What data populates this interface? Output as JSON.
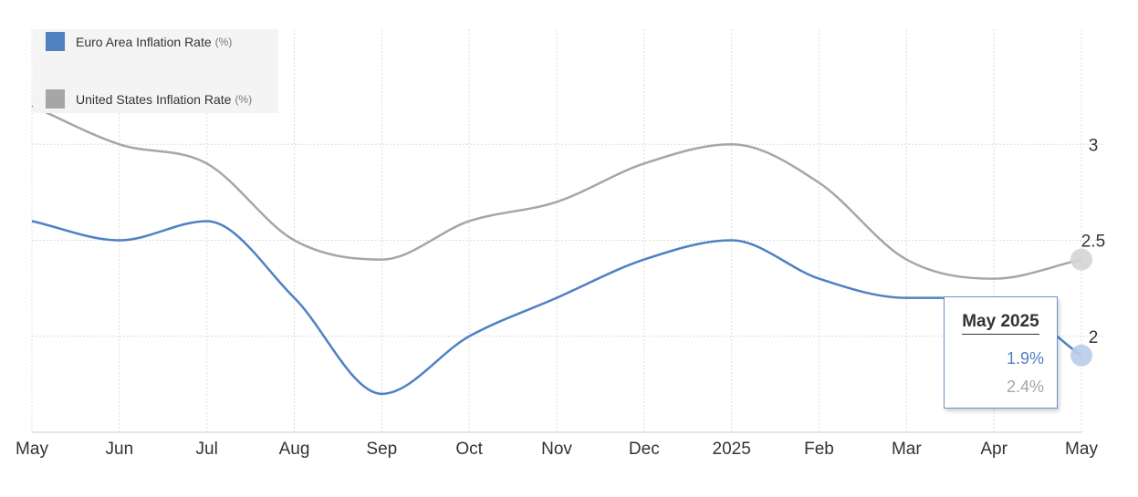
{
  "colors": {
    "euro": "#4f81c3",
    "us": "#a6a6a6",
    "grid": "#dcdcdc",
    "marker_euro": "#b9cde9",
    "marker_us": "#d4d4d4"
  },
  "legend": {
    "items": [
      {
        "name": "Euro Area Inflation Rate",
        "unit": "(%)"
      },
      {
        "name": "United States Inflation Rate",
        "unit": "(%)"
      }
    ]
  },
  "tooltip": {
    "title": "May 2025",
    "euro_value": "1.9%",
    "us_value": "2.4%"
  },
  "chart_data": {
    "type": "line",
    "categories": [
      "May",
      "Jun",
      "Jul",
      "Aug",
      "Sep",
      "Oct",
      "Nov",
      "Dec",
      "2025",
      "Feb",
      "Mar",
      "Apr",
      "May"
    ],
    "series": [
      {
        "name": "Euro Area Inflation Rate",
        "unit": "(%)",
        "values": [
          2.6,
          2.5,
          2.6,
          2.2,
          1.7,
          2.0,
          2.2,
          2.4,
          2.5,
          2.3,
          2.2,
          2.2,
          1.9
        ]
      },
      {
        "name": "United States Inflation Rate",
        "unit": "(%)",
        "values": [
          3.2,
          3.0,
          2.9,
          2.5,
          2.4,
          2.6,
          2.7,
          2.9,
          3.0,
          2.8,
          2.4,
          2.3,
          2.4
        ]
      }
    ],
    "y_ticks": [
      "2",
      "2.5",
      "3"
    ],
    "ylim": [
      1.5,
      3.6
    ],
    "grid": true,
    "y_axis_side": "right",
    "legend_position": "top-left",
    "xlabel": "",
    "ylabel": ""
  }
}
